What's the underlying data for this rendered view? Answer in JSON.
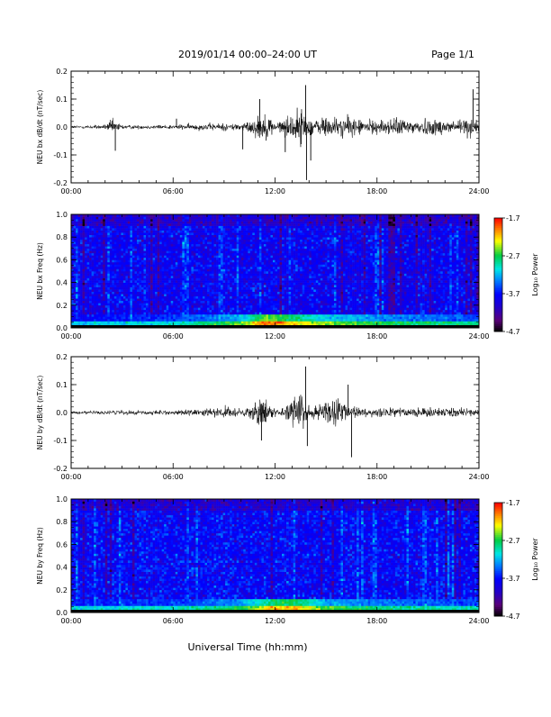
{
  "header": {
    "title": "2019/01/14  00:00–24:00 UT",
    "page": "Page 1/1"
  },
  "footer": {
    "xlabel": "Universal Time (hh:mm)"
  },
  "colors": {
    "trace": "#000000",
    "axis": "#000000",
    "colormap": [
      "#000000",
      "#5a0078",
      "#2200cc",
      "#0000ff",
      "#0080ff",
      "#00e6e6",
      "#00cc44",
      "#ffff00",
      "#ff8000",
      "#ff0000"
    ]
  },
  "chart_data": [
    {
      "type": "line",
      "title": "",
      "ylabel": "NEU bx dB/dt (nT/sec)",
      "xlabel": "",
      "x_ticks": [
        "00:00",
        "06:00",
        "12:00",
        "18:00",
        "24:00"
      ],
      "x_range_hours": [
        0,
        24
      ],
      "ylim": [
        -0.2,
        0.2
      ],
      "y_ticks": [
        "0.2",
        "0.1",
        "0.0",
        "-0.1",
        "-0.2"
      ],
      "envelope": {
        "x_hours": [
          0,
          2,
          2.4,
          3,
          4,
          6,
          8,
          9,
          10,
          10.5,
          11,
          11.5,
          12,
          12.5,
          13,
          13.5,
          14,
          14.5,
          15,
          15.5,
          16,
          16.5,
          17,
          18,
          19,
          20,
          21,
          22,
          23,
          23.5,
          24
        ],
        "amplitude": [
          0.008,
          0.012,
          0.04,
          0.012,
          0.01,
          0.012,
          0.018,
          0.02,
          0.02,
          0.03,
          0.06,
          0.07,
          0.025,
          0.04,
          0.07,
          0.1,
          0.05,
          0.04,
          0.06,
          0.05,
          0.05,
          0.055,
          0.04,
          0.035,
          0.045,
          0.04,
          0.045,
          0.04,
          0.045,
          0.05,
          0.03
        ]
      },
      "spikes": [
        {
          "x_hour": 2.6,
          "y": -0.085
        },
        {
          "x_hour": 6.2,
          "y": 0.03
        },
        {
          "x_hour": 10.1,
          "y": -0.08
        },
        {
          "x_hour": 11.1,
          "y": 0.1
        },
        {
          "x_hour": 12.6,
          "y": -0.09
        },
        {
          "x_hour": 13.8,
          "y": 0.15
        },
        {
          "x_hour": 13.85,
          "y": -0.19
        },
        {
          "x_hour": 14.1,
          "y": -0.12
        },
        {
          "x_hour": 23.65,
          "y": 0.135
        }
      ]
    },
    {
      "type": "heatmap",
      "title": "",
      "ylabel": "NEU bx Freq (Hz)",
      "xlabel": "",
      "x_ticks": [
        "00:00",
        "06:00",
        "12:00",
        "18:00",
        "24:00"
      ],
      "x_range_hours": [
        0,
        24
      ],
      "ylim": [
        0.0,
        1.0
      ],
      "y_ticks": [
        "1.0",
        "0.8",
        "0.6",
        "0.4",
        "0.2",
        "0.0"
      ],
      "colorbar": {
        "label": "Log₁₀ Power",
        "range": [
          -4.7,
          -1.7
        ],
        "ticks": [
          "-1.7",
          "-2.7",
          "-3.7",
          "-4.7"
        ]
      },
      "base_level": -3.8,
      "low_freq_band": {
        "freq_max": 0.06,
        "level_by_hour": [
          [
            0,
            -3.2
          ],
          [
            6,
            -3.0
          ],
          [
            10,
            -2.6
          ],
          [
            11.5,
            -1.9
          ],
          [
            13,
            -2.2
          ],
          [
            15,
            -2.5
          ],
          [
            18,
            -2.7
          ],
          [
            24,
            -2.9
          ]
        ]
      }
    },
    {
      "type": "line",
      "title": "",
      "ylabel": "NEU by dB/dt (nT/sec)",
      "xlabel": "",
      "x_ticks": [
        "00:00",
        "06:00",
        "12:00",
        "18:00",
        "24:00"
      ],
      "x_range_hours": [
        0,
        24
      ],
      "ylim": [
        -0.2,
        0.2
      ],
      "y_ticks": [
        "0.2",
        "0.1",
        "0.0",
        "-0.1",
        "-0.2"
      ],
      "envelope": {
        "x_hours": [
          0,
          2,
          3,
          4,
          6,
          8,
          9,
          10,
          10.5,
          11,
          11.5,
          12,
          12.5,
          13,
          13.5,
          14,
          14.5,
          15,
          15.5,
          16,
          16.5,
          17,
          18,
          19,
          20,
          21,
          22,
          23,
          24
        ],
        "amplitude": [
          0.008,
          0.012,
          0.012,
          0.012,
          0.012,
          0.02,
          0.03,
          0.02,
          0.03,
          0.08,
          0.07,
          0.02,
          0.03,
          0.07,
          0.1,
          0.04,
          0.04,
          0.06,
          0.07,
          0.04,
          0.03,
          0.025,
          0.02,
          0.025,
          0.02,
          0.025,
          0.025,
          0.025,
          0.02
        ]
      },
      "spikes": [
        {
          "x_hour": 11.2,
          "y": -0.1
        },
        {
          "x_hour": 13.8,
          "y": 0.165
        },
        {
          "x_hour": 13.9,
          "y": -0.12
        },
        {
          "x_hour": 16.5,
          "y": -0.16
        },
        {
          "x_hour": 16.3,
          "y": 0.1
        }
      ]
    },
    {
      "type": "heatmap",
      "title": "",
      "ylabel": "NEU by Freq (Hz)",
      "xlabel": "",
      "x_ticks": [
        "00:00",
        "06:00",
        "12:00",
        "18:00",
        "24:00"
      ],
      "x_range_hours": [
        0,
        24
      ],
      "ylim": [
        0.0,
        1.0
      ],
      "y_ticks": [
        "1.0",
        "0.8",
        "0.6",
        "0.4",
        "0.2",
        "0.0"
      ],
      "colorbar": {
        "label": "Log₁₀ Power",
        "range": [
          -4.7,
          -1.7
        ],
        "ticks": [
          "-1.7",
          "-2.7",
          "-3.7",
          "-4.7"
        ]
      },
      "base_level": -3.75,
      "low_freq_band": {
        "freq_max": 0.06,
        "level_by_hour": [
          [
            0,
            -3.1
          ],
          [
            6,
            -3.0
          ],
          [
            10,
            -2.7
          ],
          [
            11.5,
            -2.2
          ],
          [
            13,
            -2.1
          ],
          [
            15,
            -2.6
          ],
          [
            18,
            -2.8
          ],
          [
            24,
            -3.0
          ]
        ]
      }
    }
  ]
}
